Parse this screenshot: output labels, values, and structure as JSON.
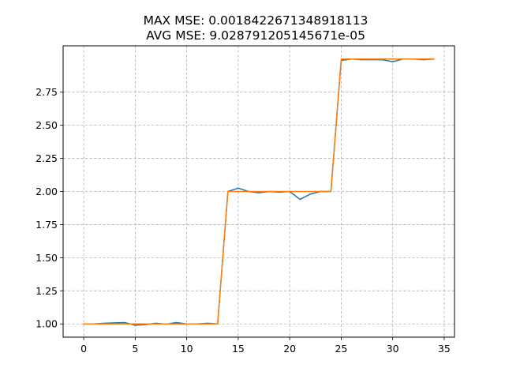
{
  "chart_data": {
    "type": "line",
    "title_lines": [
      "MAX MSE: 0.0018422671348918113",
      "AVG MSE: 9.028791205145671e-05"
    ],
    "xlabel": "",
    "ylabel": "",
    "xlim": [
      -2,
      36
    ],
    "ylim": [
      0.9,
      3.1
    ],
    "x_ticks": [
      0,
      5,
      10,
      15,
      20,
      25,
      30,
      35
    ],
    "y_ticks": [
      1.0,
      1.25,
      1.5,
      1.75,
      2.0,
      2.25,
      2.5,
      2.75
    ],
    "y_tick_labels": [
      "1.00",
      "1.25",
      "1.50",
      "1.75",
      "2.00",
      "2.25",
      "2.50",
      "2.75"
    ],
    "grid": true,
    "x": [
      0,
      1,
      2,
      3,
      4,
      5,
      6,
      7,
      8,
      9,
      10,
      11,
      12,
      13,
      14,
      15,
      16,
      17,
      18,
      19,
      20,
      21,
      22,
      23,
      24,
      25,
      26,
      27,
      28,
      29,
      30,
      31,
      32,
      33,
      34
    ],
    "series": [
      {
        "color": "#1f77b4",
        "values": [
          1.0,
          1.0,
          1.005,
          1.008,
          1.01,
          0.99,
          0.995,
          1.005,
          0.998,
          1.01,
          1.0,
          1.0,
          1.005,
          1.0,
          2.0,
          2.025,
          2.0,
          1.99,
          2.0,
          1.995,
          2.0,
          1.94,
          1.98,
          2.0,
          2.0,
          2.99,
          3.0,
          2.995,
          2.995,
          2.995,
          2.98,
          3.0,
          3.0,
          2.995,
          3.0
        ]
      },
      {
        "color": "#ff7f0e",
        "values": [
          1.0,
          1.0,
          1.0,
          1.0,
          1.0,
          1.0,
          1.0,
          1.0,
          1.0,
          1.0,
          1.0,
          1.0,
          1.0,
          1.0,
          2.0,
          2.0,
          2.0,
          2.0,
          2.0,
          2.0,
          2.0,
          2.0,
          2.0,
          2.0,
          2.0,
          3.0,
          3.0,
          3.0,
          3.0,
          3.0,
          3.0,
          3.0,
          3.0,
          3.0,
          3.0
        ]
      }
    ]
  }
}
